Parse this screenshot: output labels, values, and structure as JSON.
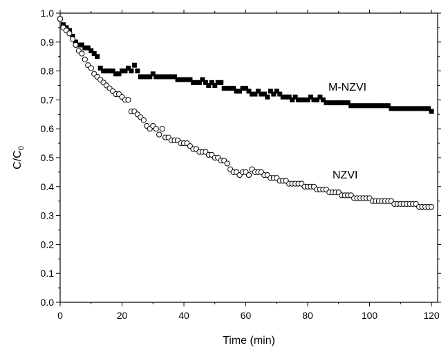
{
  "chart_data": {
    "type": "scatter",
    "title": "",
    "xlabel": "Time (min)",
    "ylabel": {
      "main": "C/C",
      "subscript": "0"
    },
    "xlim": [
      0,
      122
    ],
    "ylim": [
      0.0,
      1.0
    ],
    "xticks": [
      0,
      20,
      40,
      60,
      80,
      100,
      120
    ],
    "xtick_labels": [
      "0",
      "20",
      "40",
      "60",
      "80",
      "100",
      "120"
    ],
    "yticks": [
      0.0,
      0.1,
      0.2,
      0.3,
      0.4,
      0.5,
      0.6,
      0.7,
      0.8,
      0.9,
      1.0
    ],
    "ytick_labels": [
      "0.0",
      "0.1",
      "0.2",
      "0.3",
      "0.4",
      "0.5",
      "0.6",
      "0.7",
      "0.8",
      "0.9",
      "1.0"
    ],
    "grid": false,
    "legend": "none",
    "series": [
      {
        "name": "M-NZVI",
        "marker": "filled-square",
        "color": "#000000",
        "points": [
          [
            0,
            0.98
          ],
          [
            1,
            0.96
          ],
          [
            2,
            0.95
          ],
          [
            3,
            0.94
          ],
          [
            4,
            0.92
          ],
          [
            5,
            0.9
          ],
          [
            6,
            0.89
          ],
          [
            7,
            0.89
          ],
          [
            8,
            0.88
          ],
          [
            9,
            0.88
          ],
          [
            10,
            0.87
          ],
          [
            11,
            0.86
          ],
          [
            12,
            0.85
          ],
          [
            13,
            0.81
          ],
          [
            14,
            0.8
          ],
          [
            15,
            0.8
          ],
          [
            16,
            0.8
          ],
          [
            17,
            0.8
          ],
          [
            18,
            0.79
          ],
          [
            19,
            0.79
          ],
          [
            20,
            0.8
          ],
          [
            21,
            0.8
          ],
          [
            22,
            0.81
          ],
          [
            23,
            0.8
          ],
          [
            24,
            0.82
          ],
          [
            25,
            0.8
          ],
          [
            26,
            0.78
          ],
          [
            27,
            0.78
          ],
          [
            28,
            0.78
          ],
          [
            29,
            0.78
          ],
          [
            30,
            0.79
          ],
          [
            31,
            0.78
          ],
          [
            32,
            0.78
          ],
          [
            33,
            0.78
          ],
          [
            34,
            0.78
          ],
          [
            35,
            0.78
          ],
          [
            36,
            0.78
          ],
          [
            37,
            0.78
          ],
          [
            38,
            0.77
          ],
          [
            39,
            0.77
          ],
          [
            40,
            0.77
          ],
          [
            41,
            0.77
          ],
          [
            42,
            0.77
          ],
          [
            43,
            0.76
          ],
          [
            44,
            0.76
          ],
          [
            45,
            0.76
          ],
          [
            46,
            0.77
          ],
          [
            47,
            0.76
          ],
          [
            48,
            0.75
          ],
          [
            49,
            0.76
          ],
          [
            50,
            0.75
          ],
          [
            51,
            0.76
          ],
          [
            52,
            0.76
          ],
          [
            53,
            0.74
          ],
          [
            54,
            0.74
          ],
          [
            55,
            0.74
          ],
          [
            56,
            0.74
          ],
          [
            57,
            0.73
          ],
          [
            58,
            0.73
          ],
          [
            59,
            0.74
          ],
          [
            60,
            0.74
          ],
          [
            61,
            0.73
          ],
          [
            62,
            0.72
          ],
          [
            63,
            0.72
          ],
          [
            64,
            0.73
          ],
          [
            65,
            0.72
          ],
          [
            66,
            0.72
          ],
          [
            67,
            0.71
          ],
          [
            68,
            0.73
          ],
          [
            69,
            0.72
          ],
          [
            70,
            0.73
          ],
          [
            71,
            0.72
          ],
          [
            72,
            0.71
          ],
          [
            73,
            0.71
          ],
          [
            74,
            0.71
          ],
          [
            75,
            0.7
          ],
          [
            76,
            0.71
          ],
          [
            77,
            0.7
          ],
          [
            78,
            0.7
          ],
          [
            79,
            0.7
          ],
          [
            80,
            0.7
          ],
          [
            81,
            0.71
          ],
          [
            82,
            0.7
          ],
          [
            83,
            0.7
          ],
          [
            84,
            0.71
          ],
          [
            85,
            0.7
          ],
          [
            86,
            0.69
          ],
          [
            87,
            0.69
          ],
          [
            88,
            0.69
          ],
          [
            89,
            0.69
          ],
          [
            90,
            0.69
          ],
          [
            91,
            0.69
          ],
          [
            92,
            0.69
          ],
          [
            93,
            0.69
          ],
          [
            94,
            0.68
          ],
          [
            95,
            0.68
          ],
          [
            96,
            0.68
          ],
          [
            97,
            0.68
          ],
          [
            98,
            0.68
          ],
          [
            99,
            0.68
          ],
          [
            100,
            0.68
          ],
          [
            101,
            0.68
          ],
          [
            102,
            0.68
          ],
          [
            103,
            0.68
          ],
          [
            104,
            0.68
          ],
          [
            105,
            0.68
          ],
          [
            106,
            0.68
          ],
          [
            107,
            0.67
          ],
          [
            108,
            0.67
          ],
          [
            109,
            0.67
          ],
          [
            110,
            0.67
          ],
          [
            111,
            0.67
          ],
          [
            112,
            0.67
          ],
          [
            113,
            0.67
          ],
          [
            114,
            0.67
          ],
          [
            115,
            0.67
          ],
          [
            116,
            0.67
          ],
          [
            117,
            0.67
          ],
          [
            118,
            0.67
          ],
          [
            119,
            0.67
          ],
          [
            120,
            0.66
          ]
        ]
      },
      {
        "name": "NZVI",
        "marker": "open-circle",
        "color": "#000000",
        "points": [
          [
            0,
            0.98
          ],
          [
            1,
            0.95
          ],
          [
            2,
            0.94
          ],
          [
            3,
            0.93
          ],
          [
            4,
            0.91
          ],
          [
            5,
            0.89
          ],
          [
            6,
            0.87
          ],
          [
            7,
            0.86
          ],
          [
            8,
            0.84
          ],
          [
            9,
            0.82
          ],
          [
            10,
            0.81
          ],
          [
            11,
            0.79
          ],
          [
            12,
            0.78
          ],
          [
            13,
            0.77
          ],
          [
            14,
            0.76
          ],
          [
            15,
            0.75
          ],
          [
            16,
            0.74
          ],
          [
            17,
            0.73
          ],
          [
            18,
            0.72
          ],
          [
            19,
            0.72
          ],
          [
            20,
            0.71
          ],
          [
            21,
            0.7
          ],
          [
            22,
            0.7
          ],
          [
            23,
            0.66
          ],
          [
            24,
            0.66
          ],
          [
            25,
            0.65
          ],
          [
            26,
            0.64
          ],
          [
            27,
            0.63
          ],
          [
            28,
            0.61
          ],
          [
            29,
            0.6
          ],
          [
            30,
            0.61
          ],
          [
            31,
            0.6
          ],
          [
            32,
            0.58
          ],
          [
            33,
            0.6
          ],
          [
            34,
            0.57
          ],
          [
            35,
            0.57
          ],
          [
            36,
            0.56
          ],
          [
            37,
            0.56
          ],
          [
            38,
            0.56
          ],
          [
            39,
            0.55
          ],
          [
            40,
            0.55
          ],
          [
            41,
            0.55
          ],
          [
            42,
            0.54
          ],
          [
            43,
            0.53
          ],
          [
            44,
            0.53
          ],
          [
            45,
            0.52
          ],
          [
            46,
            0.52
          ],
          [
            47,
            0.52
          ],
          [
            48,
            0.51
          ],
          [
            49,
            0.51
          ],
          [
            50,
            0.5
          ],
          [
            51,
            0.5
          ],
          [
            52,
            0.49
          ],
          [
            53,
            0.49
          ],
          [
            54,
            0.48
          ],
          [
            55,
            0.46
          ],
          [
            56,
            0.45
          ],
          [
            57,
            0.45
          ],
          [
            58,
            0.44
          ],
          [
            59,
            0.45
          ],
          [
            60,
            0.45
          ],
          [
            61,
            0.44
          ],
          [
            62,
            0.46
          ],
          [
            63,
            0.45
          ],
          [
            64,
            0.45
          ],
          [
            65,
            0.45
          ],
          [
            66,
            0.44
          ],
          [
            67,
            0.44
          ],
          [
            68,
            0.43
          ],
          [
            69,
            0.43
          ],
          [
            70,
            0.43
          ],
          [
            71,
            0.42
          ],
          [
            72,
            0.42
          ],
          [
            73,
            0.42
          ],
          [
            74,
            0.41
          ],
          [
            75,
            0.41
          ],
          [
            76,
            0.41
          ],
          [
            77,
            0.41
          ],
          [
            78,
            0.41
          ],
          [
            79,
            0.4
          ],
          [
            80,
            0.4
          ],
          [
            81,
            0.4
          ],
          [
            82,
            0.4
          ],
          [
            83,
            0.39
          ],
          [
            84,
            0.39
          ],
          [
            85,
            0.39
          ],
          [
            86,
            0.39
          ],
          [
            87,
            0.38
          ],
          [
            88,
            0.38
          ],
          [
            89,
            0.38
          ],
          [
            90,
            0.38
          ],
          [
            91,
            0.37
          ],
          [
            92,
            0.37
          ],
          [
            93,
            0.37
          ],
          [
            94,
            0.37
          ],
          [
            95,
            0.36
          ],
          [
            96,
            0.36
          ],
          [
            97,
            0.36
          ],
          [
            98,
            0.36
          ],
          [
            99,
            0.36
          ],
          [
            100,
            0.36
          ],
          [
            101,
            0.35
          ],
          [
            102,
            0.35
          ],
          [
            103,
            0.35
          ],
          [
            104,
            0.35
          ],
          [
            105,
            0.35
          ],
          [
            106,
            0.35
          ],
          [
            107,
            0.35
          ],
          [
            108,
            0.34
          ],
          [
            109,
            0.34
          ],
          [
            110,
            0.34
          ],
          [
            111,
            0.34
          ],
          [
            112,
            0.34
          ],
          [
            113,
            0.34
          ],
          [
            114,
            0.34
          ],
          [
            115,
            0.34
          ],
          [
            116,
            0.33
          ],
          [
            117,
            0.33
          ],
          [
            118,
            0.33
          ],
          [
            119,
            0.33
          ],
          [
            120,
            0.33
          ]
        ]
      }
    ]
  }
}
